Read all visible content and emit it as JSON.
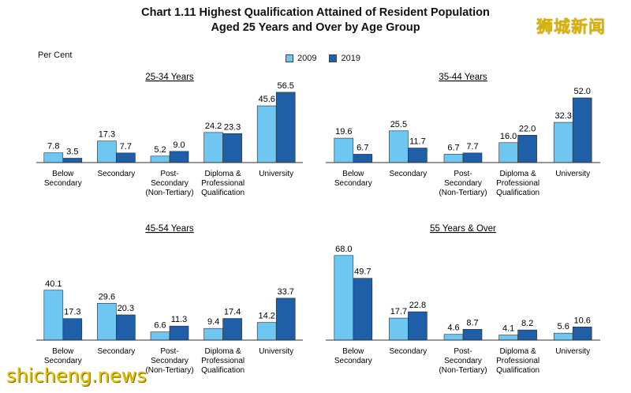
{
  "title_line1": "Chart 1.11  Highest Qualification Attained of Resident Population",
  "title_line2": "Aged 25 Years and Over by Age Group",
  "unit_label": "Per Cent",
  "watermark_cn": "狮城新闻",
  "watermark_en": "shicheng.news",
  "colors": {
    "y2009": "#6ec6f1",
    "y2019": "#1e5fa8",
    "axis": "#333333"
  },
  "legend": [
    {
      "label": "2009",
      "color": "#6ec6f1"
    },
    {
      "label": "2019",
      "color": "#1e5fa8"
    }
  ],
  "chart_data": [
    {
      "type": "bar",
      "title": "25-34 Years",
      "categories": [
        "Below Secondary",
        "Secondary",
        "Post-Secondary (Non-Tertiary)",
        "Diploma & Professional Qualification",
        "University"
      ],
      "category_lines": [
        [
          "Below",
          "Secondary"
        ],
        [
          "Secondary"
        ],
        [
          "Post-",
          "Secondary",
          "(Non-Tertiary)"
        ],
        [
          "Diploma &",
          "Professional",
          "Qualification"
        ],
        [
          "University"
        ]
      ],
      "series": [
        {
          "name": "2009",
          "values": [
            7.8,
            17.3,
            5.2,
            24.2,
            45.6
          ]
        },
        {
          "name": "2019",
          "values": [
            3.5,
            7.7,
            9.0,
            23.3,
            56.5
          ]
        }
      ]
    },
    {
      "type": "bar",
      "title": "35-44 Years",
      "categories": [
        "Below Secondary",
        "Secondary",
        "Post-Secondary (Non-Tertiary)",
        "Diploma & Professional Qualification",
        "University"
      ],
      "category_lines": [
        [
          "Below",
          "Secondary"
        ],
        [
          "Secondary"
        ],
        [
          "Post-",
          "Secondary",
          "(Non-Tertiary)"
        ],
        [
          "Diploma &",
          "Professional",
          "Qualification"
        ],
        [
          "University"
        ]
      ],
      "series": [
        {
          "name": "2009",
          "values": [
            19.6,
            25.5,
            6.7,
            16.0,
            32.3
          ]
        },
        {
          "name": "2019",
          "values": [
            6.7,
            11.7,
            7.7,
            22.0,
            52.0
          ]
        }
      ]
    },
    {
      "type": "bar",
      "title": "45-54 Years",
      "categories": [
        "Below Secondary",
        "Secondary",
        "Post-Secondary (Non-Tertiary)",
        "Diploma & Professional Qualification",
        "University"
      ],
      "category_lines": [
        [
          "Below",
          "Secondary"
        ],
        [
          "Secondary"
        ],
        [
          "Post-",
          "Secondary",
          "(Non-Tertiary)"
        ],
        [
          "Diploma &",
          "Professional",
          "Qualification"
        ],
        [
          "University"
        ]
      ],
      "series": [
        {
          "name": "2009",
          "values": [
            40.1,
            29.6,
            6.6,
            9.4,
            14.2
          ]
        },
        {
          "name": "2019",
          "values": [
            17.3,
            20.3,
            11.3,
            17.4,
            33.7
          ]
        }
      ]
    },
    {
      "type": "bar",
      "title": "55 Years & Over",
      "categories": [
        "Below Secondary",
        "Secondary",
        "Post-Secondary (Non-Tertiary)",
        "Diploma & Professional Qualification",
        "University"
      ],
      "category_lines": [
        [
          "Below",
          "Secondary"
        ],
        [
          "Secondary"
        ],
        [
          "Post-",
          "Secondary",
          "(Non-Tertiary)"
        ],
        [
          "Diploma &",
          "Professional",
          "Qualification"
        ],
        [
          "University"
        ]
      ],
      "series": [
        {
          "name": "2009",
          "values": [
            68.0,
            17.7,
            4.6,
            4.1,
            5.6
          ]
        },
        {
          "name": "2019",
          "values": [
            49.7,
            22.8,
            8.7,
            8.2,
            10.6
          ]
        }
      ]
    }
  ]
}
